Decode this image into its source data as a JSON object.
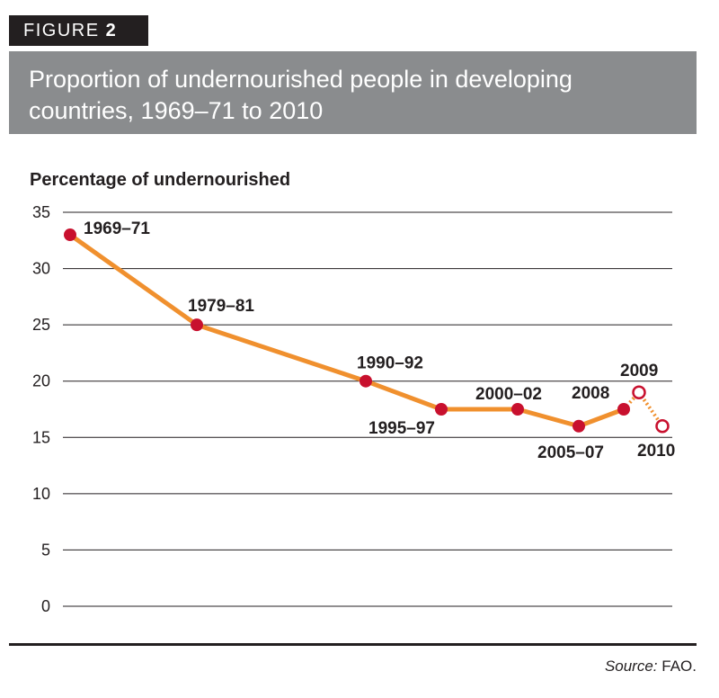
{
  "figure": {
    "prefix": "FIGURE",
    "number": "2"
  },
  "title": "Proportion of undernourished people in developing countries, 1969–71 to 2010",
  "source": {
    "prefix": "Source:",
    "text": "FAO."
  },
  "colors": {
    "line": "#f0902e",
    "point": "#c8102e",
    "grid": "#231f20",
    "text": "#231f20",
    "title_band": "#8a8c8e"
  },
  "chart_data": {
    "type": "line",
    "ylabel": "Percentage of undernourished",
    "ylim": [
      0,
      35
    ],
    "yticks": [
      0,
      5,
      10,
      15,
      20,
      25,
      30,
      35
    ],
    "grid": true,
    "series": [
      {
        "points": [
          {
            "label": "1969–71",
            "value": 33,
            "projected": false
          },
          {
            "label": "1979–81",
            "value": 25,
            "projected": false
          },
          {
            "label": "1990–92",
            "value": 20,
            "projected": false
          },
          {
            "label": "1995–97",
            "value": 17.5,
            "projected": false
          },
          {
            "label": "2000–02",
            "value": 17.5,
            "projected": false
          },
          {
            "label": "2005–07",
            "value": 16,
            "projected": false
          },
          {
            "label": "2008",
            "value": 17.5,
            "projected": false
          },
          {
            "label": "2009",
            "value": 19,
            "projected": true
          },
          {
            "label": "2010",
            "value": 16,
            "projected": true
          }
        ]
      }
    ]
  }
}
